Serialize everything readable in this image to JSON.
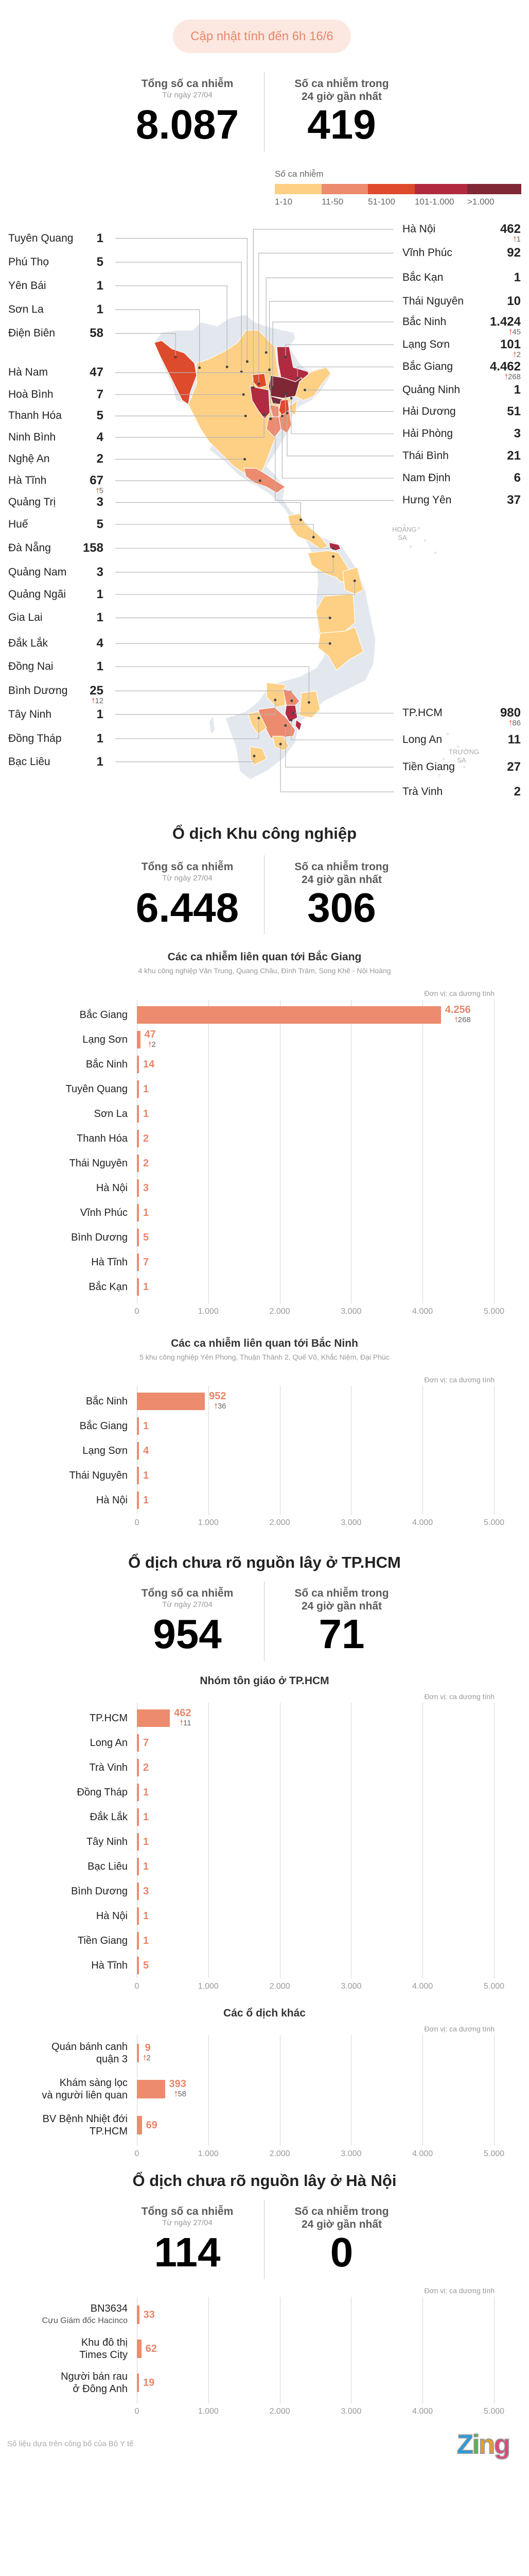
{
  "header": {
    "update_label": "Cập nhật tính đến 6h 16/6"
  },
  "summary": {
    "total_label": "Tổng số ca nhiễm",
    "total_sub": "Từ ngày 27/04",
    "total_value": "8.087",
    "recent_label_1": "Số ca nhiễm trong",
    "recent_label_2": "24 giờ gần nhất",
    "recent_value": "419"
  },
  "legend": {
    "title": "Số ca nhiễm",
    "bins": [
      {
        "label": "1-10",
        "color": "#fdd085"
      },
      {
        "label": "11-50",
        "color": "#ec8b6e"
      },
      {
        "label": "51-100",
        "color": "#de4a2c"
      },
      {
        "label": "101-1.000",
        "color": "#b12a40"
      },
      {
        "label": ">1.000",
        "color": "#7f2735"
      }
    ]
  },
  "map": {
    "no_case_color": "#e3e7ee",
    "left": [
      {
        "name": "Tuyên Quang",
        "value": "1"
      },
      {
        "name": "Phú Thọ",
        "value": "5"
      },
      {
        "name": "Yên Bái",
        "value": "1"
      },
      {
        "name": "Sơn La",
        "value": "1"
      },
      {
        "name": "Điện Biên",
        "value": "58"
      },
      {
        "name": "Hà Nam",
        "value": "47"
      },
      {
        "name": "Hoà Bình",
        "value": "7"
      },
      {
        "name": "Thanh Hóa",
        "value": "5"
      },
      {
        "name": "Ninh Bình",
        "value": "4"
      },
      {
        "name": "Nghệ An",
        "value": "2"
      },
      {
        "name": "Hà Tĩnh",
        "value": "67",
        "delta": "5"
      },
      {
        "name": "Quảng Trị",
        "value": "3"
      },
      {
        "name": "Huế",
        "value": "5"
      },
      {
        "name": "Đà Nẵng",
        "value": "158"
      },
      {
        "name": "Quảng Nam",
        "value": "3"
      },
      {
        "name": "Quảng Ngãi",
        "value": "1"
      },
      {
        "name": "Gia Lai",
        "value": "1"
      },
      {
        "name": "Đắk Lắk",
        "value": "4"
      },
      {
        "name": "Đồng Nai",
        "value": "1"
      },
      {
        "name": "Bình Dương",
        "value": "25",
        "delta": "12"
      },
      {
        "name": "Tây Ninh",
        "value": "1"
      },
      {
        "name": "Đồng Tháp",
        "value": "1"
      },
      {
        "name": "Bạc Liêu",
        "value": "1"
      }
    ],
    "right": [
      {
        "name": "Hà Nội",
        "value": "462",
        "delta": "1"
      },
      {
        "name": "Vĩnh Phúc",
        "value": "92"
      },
      {
        "name": "Bắc Kạn",
        "value": "1"
      },
      {
        "name": "Thái Nguyên",
        "value": "10"
      },
      {
        "name": "Bắc Ninh",
        "value": "1.424",
        "delta": "45"
      },
      {
        "name": "Lạng Sơn",
        "value": "101",
        "delta": "2"
      },
      {
        "name": "Bắc Giang",
        "value": "4.462",
        "delta": "268"
      },
      {
        "name": "Quảng Ninh",
        "value": "1"
      },
      {
        "name": "Hải Dương",
        "value": "51"
      },
      {
        "name": "Hải Phòng",
        "value": "3"
      },
      {
        "name": "Thái Bình",
        "value": "21"
      },
      {
        "name": "Nam Định",
        "value": "6"
      },
      {
        "name": "Hưng Yên",
        "value": "37"
      },
      {
        "name": "TP.HCM",
        "value": "980",
        "delta": "86"
      },
      {
        "name": "Long An",
        "value": "11"
      },
      {
        "name": "Tiền Giang",
        "value": "27"
      },
      {
        "name": "Trà Vinh",
        "value": "2"
      }
    ],
    "islands": [
      {
        "line1": "HOÀNG",
        "line2": "SA"
      },
      {
        "line1": "TRƯỜNG",
        "line2": "SA"
      }
    ]
  },
  "sections": [
    {
      "title": "Ổ dịch Khu công nghiệp",
      "total_label": "Tổng số ca nhiễm",
      "total_sub": "Từ ngày 27/04",
      "total_value": "6.448",
      "recent_label_1": "Số ca nhiễm trong",
      "recent_label_2": "24 giờ gần nhất",
      "recent_value": "306"
    },
    {
      "title": "Ổ dịch chưa rõ nguồn lây ở TP.HCM",
      "total_label": "Tổng số ca nhiễm",
      "total_sub": "Từ ngày 27/04",
      "total_value": "954",
      "recent_label_1": "Số ca nhiễm trong",
      "recent_label_2": "24 giờ gần nhất",
      "recent_value": "71"
    },
    {
      "title": "Ổ dịch chưa rõ nguồn lây ở Hà Nội",
      "total_label": "Tổng số ca nhiễm",
      "total_sub": "Từ ngày 27/04",
      "total_value": "114",
      "recent_label_1": "Số ca nhiễm trong",
      "recent_label_2": "24 giờ gần nhất",
      "recent_value": "0"
    }
  ],
  "chart_data": [
    {
      "type": "bar",
      "orientation": "horizontal",
      "title": "Các ca nhiễm liên quan tới Bắc Giang",
      "subtitle": "4 khu công nghiệp Vân Trung, Quang Châu, Đình Trám, Song Khê - Nội Hoàng",
      "unit": "Đơn vị: ca dương tính",
      "xlim": [
        0,
        5000
      ],
      "ticks": [
        0,
        1000,
        2000,
        3000,
        4000,
        5000
      ],
      "grid": true,
      "color": "#ec8b6e",
      "categories": [
        [
          "Bắc Giang"
        ],
        [
          "Lạng Sơn"
        ],
        [
          "Bắc Ninh"
        ],
        [
          "Tuyên Quang"
        ],
        [
          "Sơn La"
        ],
        [
          "Thanh Hóa"
        ],
        [
          "Thái Nguyên"
        ],
        [
          "Hà Nội"
        ],
        [
          "Vĩnh Phúc"
        ],
        [
          "Bình Dương"
        ],
        [
          "Hà Tĩnh"
        ],
        [
          "Bắc Kạn"
        ]
      ],
      "values": [
        4256,
        47,
        14,
        1,
        1,
        2,
        2,
        3,
        1,
        5,
        7,
        1
      ],
      "deltas": [
        268,
        2,
        null,
        null,
        null,
        null,
        null,
        null,
        null,
        null,
        null,
        null
      ]
    },
    {
      "type": "bar",
      "orientation": "horizontal",
      "title": "Các ca nhiễm liên quan tới Bắc Ninh",
      "subtitle": "5 khu công nghiệp Yên Phong, Thuận Thành 2, Quế Võ, Khắc Niệm, Đại Phúc",
      "unit": "Đơn vị: ca dương tính",
      "xlim": [
        0,
        5000
      ],
      "ticks": [
        0,
        1000,
        2000,
        3000,
        4000,
        5000
      ],
      "grid": true,
      "color": "#ec8b6e",
      "categories": [
        [
          "Bắc Ninh"
        ],
        [
          "Bắc Giang"
        ],
        [
          "Lạng Sơn"
        ],
        [
          "Thái Nguyên"
        ],
        [
          "Hà Nội"
        ]
      ],
      "values": [
        952,
        1,
        4,
        1,
        1
      ],
      "deltas": [
        36,
        null,
        null,
        null,
        null
      ]
    },
    {
      "type": "bar",
      "orientation": "horizontal",
      "title": "Nhóm tôn giáo ở TP.HCM",
      "unit": "Đơn vị: ca dương tính",
      "xlim": [
        0,
        5000
      ],
      "ticks": [
        0,
        1000,
        2000,
        3000,
        4000,
        5000
      ],
      "grid": true,
      "color": "#ec8b6e",
      "categories": [
        [
          "TP.HCM"
        ],
        [
          "Long An"
        ],
        [
          "Trà Vinh"
        ],
        [
          "Đồng Tháp"
        ],
        [
          "Đắk Lắk"
        ],
        [
          "Tây Ninh"
        ],
        [
          "Bạc Liêu"
        ],
        [
          "Bình Dương"
        ],
        [
          "Hà Nội"
        ],
        [
          "Tiền Giang"
        ],
        [
          "Hà Tĩnh"
        ]
      ],
      "values": [
        462,
        7,
        2,
        1,
        1,
        1,
        1,
        3,
        1,
        1,
        5
      ],
      "deltas": [
        11,
        null,
        null,
        null,
        null,
        null,
        null,
        null,
        null,
        null,
        null
      ]
    },
    {
      "type": "bar",
      "orientation": "horizontal",
      "title": "Các ổ dịch khác",
      "unit": "Đơn vị: ca dương tính",
      "xlim": [
        0,
        5000
      ],
      "ticks": [
        0,
        1000,
        2000,
        3000,
        4000,
        5000
      ],
      "grid": true,
      "color": "#ec8b6e",
      "categories": [
        [
          "Quán bánh canh",
          "quận 3"
        ],
        [
          "Khám sàng lọc",
          "và người liên quan"
        ],
        [
          "BV Bệnh Nhiệt đới",
          "TP.HCM"
        ]
      ],
      "values": [
        9,
        393,
        69
      ],
      "deltas": [
        2,
        58,
        null
      ]
    },
    {
      "type": "bar",
      "orientation": "horizontal",
      "unit": "Đơn vị: ca dương tính",
      "xlim": [
        0,
        5000
      ],
      "ticks": [
        0,
        1000,
        2000,
        3000,
        4000,
        5000
      ],
      "grid": true,
      "color": "#ec8b6e",
      "categories": [
        [
          "BN3634"
        ],
        [
          "Khu đô thị",
          "Times City"
        ],
        [
          "Người bán rau",
          "ở Đông Anh"
        ]
      ],
      "sublabels": [
        "Cựu Giám đốc Hacinco",
        null,
        null
      ],
      "values": [
        33,
        62,
        19
      ],
      "deltas": [
        null,
        null,
        null
      ]
    }
  ],
  "footer": {
    "source": "Số liệu dựa trên công bố của Bộ Y tế",
    "logo": "Zing"
  }
}
